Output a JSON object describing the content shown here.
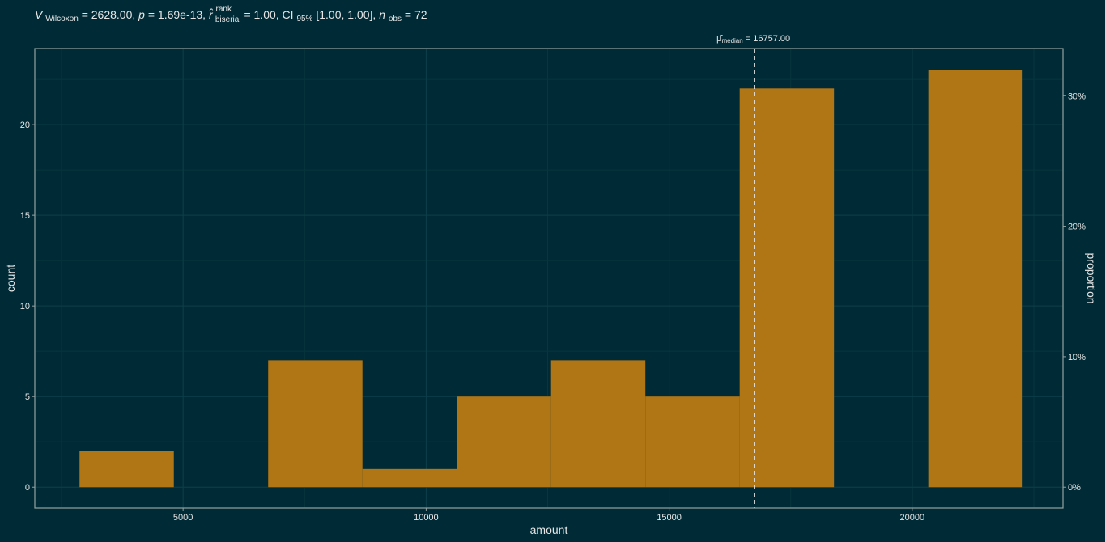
{
  "chart_data": {
    "type": "bar",
    "subtitle": {
      "v_symbol": "V",
      "v_sub": "Wilcoxon",
      "v_value": " = 2628.00, ",
      "p_symbol": "p",
      "p_value": " = 1.69e-13, ",
      "r_symbol": "r̂",
      "r_sup": "rank",
      "r_sub": "biserial",
      "r_value": " = 1.00, CI",
      "ci_sub": "95%",
      "ci_value": " [1.00, 1.00], ",
      "n_symbol": "n",
      "n_sub": "obs",
      "n_value": " = 72"
    },
    "xlabel": "amount",
    "ylabel": "count",
    "y2label": "proportion",
    "xlim": [
      1950,
      23100
    ],
    "ylim": [
      -1.15,
      24.2
    ],
    "x_ticks": [
      5000,
      10000,
      15000,
      20000
    ],
    "x_tick_labels": [
      "5000",
      "10000",
      "15000",
      "20000"
    ],
    "y_ticks": [
      0,
      5,
      10,
      15,
      20
    ],
    "y_tick_labels": [
      "0",
      "5",
      "10",
      "15",
      "20"
    ],
    "y2_ticks": [
      0,
      0.1,
      0.2,
      0.3
    ],
    "y2_tick_labels": [
      "0%",
      "10%",
      "20%",
      "30%"
    ],
    "n_total": 72,
    "bins": [
      {
        "x0": 2870,
        "x1": 4810,
        "count": 2
      },
      {
        "x0": 4810,
        "x1": 6750,
        "count": 0
      },
      {
        "x0": 6750,
        "x1": 8690,
        "count": 7
      },
      {
        "x0": 8690,
        "x1": 10630,
        "count": 1
      },
      {
        "x0": 10630,
        "x1": 12570,
        "count": 5
      },
      {
        "x0": 12570,
        "x1": 14510,
        "count": 7
      },
      {
        "x0": 14510,
        "x1": 16450,
        "count": 5
      },
      {
        "x0": 16450,
        "x1": 18390,
        "count": 22
      },
      {
        "x0": 18390,
        "x1": 20330,
        "count": 0
      },
      {
        "x0": 20330,
        "x1": 22270,
        "count": 23
      }
    ],
    "median": {
      "value": 16757,
      "label_symbol": "μ̂",
      "label_sub": "median",
      "label_value": " = 16757.00"
    },
    "grid": true,
    "colors": {
      "background": "#002b36",
      "bar": "#b07514",
      "text": "#e6e6e6"
    }
  }
}
